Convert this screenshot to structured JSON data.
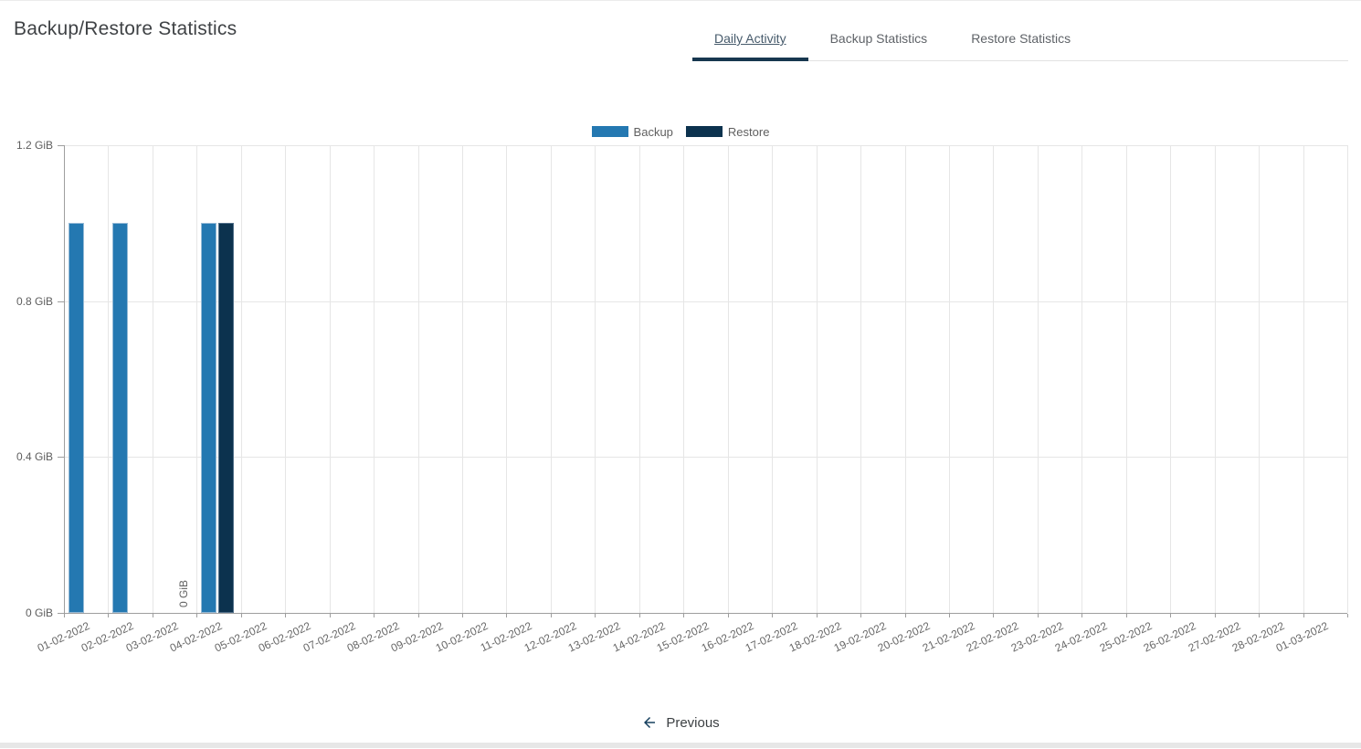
{
  "page": {
    "title": "Backup/Restore Statistics"
  },
  "tabs": [
    {
      "label": "Daily Activity",
      "active": true
    },
    {
      "label": "Backup Statistics",
      "active": false
    },
    {
      "label": "Restore Statistics",
      "active": false
    }
  ],
  "legend": [
    {
      "label": "Backup",
      "color": "#2478B1"
    },
    {
      "label": "Restore",
      "color": "#0C324E"
    }
  ],
  "pagination": {
    "previous_label": "Previous"
  },
  "colors": {
    "backup_bar": "#2478B1",
    "restore_bar": "#0C324E",
    "active_tab_ink": "#17374f",
    "axis": "#9e9e9e",
    "gridline": "#e6e6e6"
  },
  "chart_data": {
    "type": "bar",
    "title": "",
    "xlabel": "",
    "ylabel": "",
    "unit": "GiB",
    "ylim": [
      0,
      1.2
    ],
    "yticks": [
      "0 GiB",
      "0.4 GiB",
      "0.8 GiB",
      "1.2 GiB"
    ],
    "grid": true,
    "legend_position": "top-center",
    "categories": [
      "01-02-2022",
      "02-02-2022",
      "03-02-2022",
      "04-02-2022",
      "05-02-2022",
      "06-02-2022",
      "07-02-2022",
      "08-02-2022",
      "09-02-2022",
      "10-02-2022",
      "11-02-2022",
      "12-02-2022",
      "13-02-2022",
      "14-02-2022",
      "15-02-2022",
      "16-02-2022",
      "17-02-2022",
      "18-02-2022",
      "19-02-2022",
      "20-02-2022",
      "21-02-2022",
      "22-02-2022",
      "23-02-2022",
      "24-02-2022",
      "25-02-2022",
      "26-02-2022",
      "27-02-2022",
      "28-02-2022",
      "01-03-2022"
    ],
    "series": [
      {
        "name": "Backup",
        "color": "#2478B1",
        "values": [
          1.0,
          1.0,
          0,
          1.0,
          0,
          0,
          0,
          0,
          0,
          0,
          0,
          0,
          0,
          0,
          0,
          0,
          0,
          0,
          0,
          0,
          0,
          0,
          0,
          0,
          0,
          0,
          0,
          0,
          0
        ]
      },
      {
        "name": "Restore",
        "color": "#0C324E",
        "values": [
          0,
          0,
          0,
          1.0,
          0,
          0,
          0,
          0,
          0,
          0,
          0,
          0,
          0,
          0,
          0,
          0,
          0,
          0,
          0,
          0,
          0,
          0,
          0,
          0,
          0,
          0,
          0,
          0,
          0
        ]
      }
    ],
    "zero_label": {
      "category": "03-02-2022",
      "text": "0 GiB"
    }
  }
}
